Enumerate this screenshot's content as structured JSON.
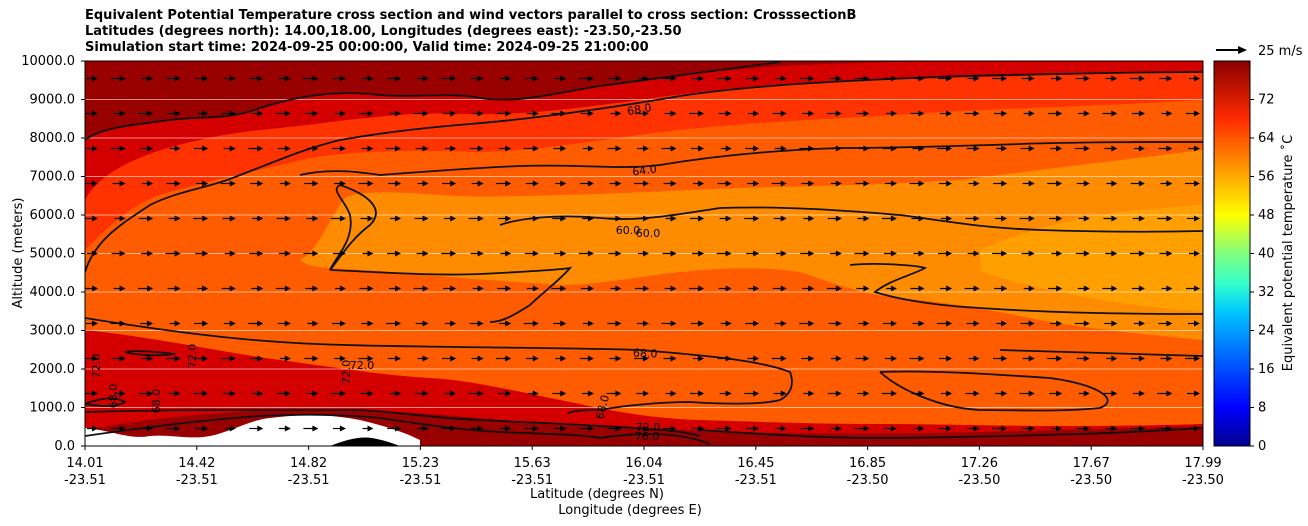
{
  "chart_data": {
    "type": "heatmap",
    "title_lines": [
      "Equivalent Potential Temperature cross section and wind vectors parallel to cross section: CrosssectionB",
      "Latitudes (degrees north): 14.00,18.00, Longitudes (degrees east): -23.50,-23.50",
      "Simulation start time: 2024-09-25 00:00:00, Valid time: 2024-09-25 21:00:00"
    ],
    "xlabel": "Latitude (degrees N)",
    "xlabel2": "Longitude (degrees E)",
    "ylabel": "Altitude (meters)",
    "ylim": [
      0,
      10000
    ],
    "y_ticks": [
      "0.0",
      "1000.0",
      "2000.0",
      "3000.0",
      "4000.0",
      "5000.0",
      "6000.0",
      "7000.0",
      "8000.0",
      "9000.0",
      "10000.0"
    ],
    "x_ticks_lat": [
      "14.01",
      "14.42",
      "14.82",
      "15.23",
      "15.63",
      "16.04",
      "16.45",
      "16.85",
      "17.26",
      "17.67",
      "17.99"
    ],
    "x_ticks_lon": [
      "-23.51",
      "-23.51",
      "-23.51",
      "-23.51",
      "-23.51",
      "-23.51",
      "-23.51",
      "-23.50",
      "-23.50",
      "-23.50",
      "-23.50"
    ],
    "colorbar": {
      "label": "Equivalent potential temperature ˚C",
      "range": [
        0,
        80
      ],
      "ticks": [
        "0",
        "8",
        "16",
        "24",
        "32",
        "40",
        "48",
        "56",
        "64",
        "72"
      ]
    },
    "contour_labels": [
      "72.0",
      "68.0",
      "64.0",
      "60.0",
      "60.0",
      "68.0",
      "72.0",
      "72.0",
      "72.0",
      "68.0",
      "68.0",
      "68.0",
      "72.0",
      "76.0"
    ],
    "quiver_key": "25 m/s",
    "field_regions": [
      {
        "name": "upper-dark",
        "value": 75
      },
      {
        "name": "upper-band",
        "value": 72
      },
      {
        "name": "mid-outer",
        "value": 68
      },
      {
        "name": "mid-inner",
        "value": 64
      },
      {
        "name": "core",
        "value": 60
      },
      {
        "name": "core-inner",
        "value": 58
      },
      {
        "name": "low-band",
        "value": 72
      },
      {
        "name": "surface-dark",
        "value": 76
      }
    ],
    "wind_vectors": {
      "columns": 41,
      "rows": 11,
      "typical_speed_ms": 12
    }
  },
  "colors": {
    "c76": "#990000",
    "c72": "#d40000",
    "c70": "#ee1400",
    "c68": "#ff3300",
    "c64": "#ff5c00",
    "c62": "#ff7800",
    "c60": "#ff8c00",
    "c58": "#ffa000",
    "contour": "#111111",
    "arrow": "#000000"
  }
}
